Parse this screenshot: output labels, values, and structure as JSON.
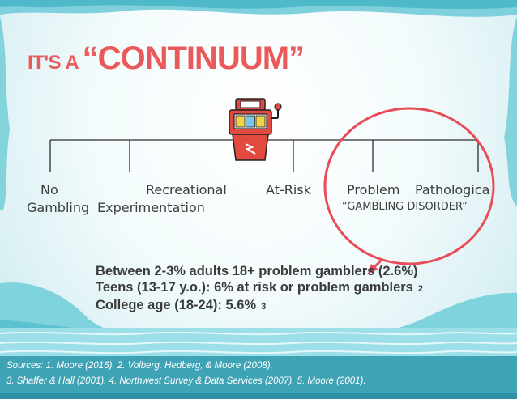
{
  "title": {
    "prefix": "IT'S A",
    "main": "“CONTINUUM”"
  },
  "continuum": {
    "labels": [
      {
        "line1": "No",
        "line2": "Gambling"
      },
      {
        "line1": "Recreational",
        "line2": "Experimentation"
      },
      {
        "line1": "At-Risk"
      },
      {
        "line1": "Problem",
        "line2": "“GAMBLING DISORDER”"
      },
      {
        "line1": "Pathologica"
      }
    ]
  },
  "stats": [
    {
      "text": "Between 2-3% adults 18+ problem gamblers (2.6%)",
      "ref": ""
    },
    {
      "text": "Teens (13-17 y.o.): 6% at risk or problem gamblers",
      "ref": "2"
    },
    {
      "text": "College age (18-24): 5.6%",
      "ref": "3"
    }
  ],
  "sources": {
    "line1": "Sources: 1. Moore (2016). 2. Volberg, Hedberg, & Moore (2008).",
    "line2": "3. Shaffer & Hall (2001). 4. Northwest Survey & Data Services (2007). 5. Moore (2001)."
  },
  "colors": {
    "accent": "#ea5a5a",
    "teal": "#3fa3b6",
    "text": "#3d3d3d"
  },
  "icons": {
    "slot_machine": "slot-machine-icon"
  }
}
